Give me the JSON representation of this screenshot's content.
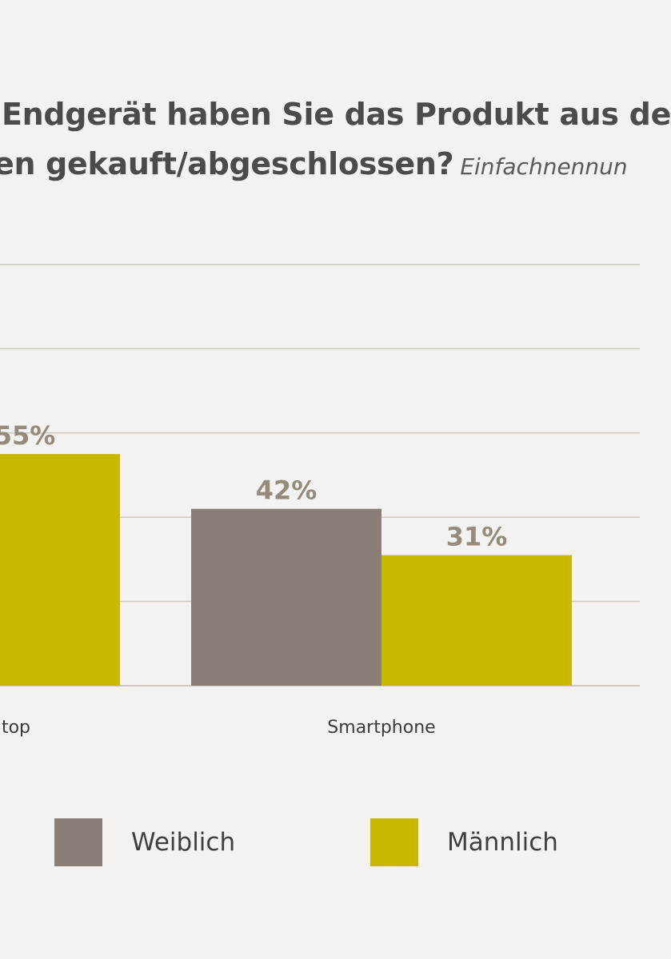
{
  "title": {
    "line1": "Endgerät haben Sie das Produkt aus de",
    "line2": "en gekauft/abgeschlossen?",
    "subtitle": "Einfachnennun"
  },
  "colors": {
    "background": "#f3f2f0",
    "weiblich": "#8a7f76",
    "maennlich": "#c8b800",
    "grid": "#cfc8bd",
    "value_label": "#958b7c",
    "axis_text": "#3a3a3a"
  },
  "chart_data": {
    "type": "bar",
    "categories": [
      "top",
      "Smartphone"
    ],
    "series": [
      {
        "name": "Weiblich",
        "values": [
          null,
          42
        ]
      },
      {
        "name": "Männlich",
        "values": [
          55,
          31
        ]
      }
    ],
    "value_labels": {
      "Weiblich": [
        "",
        "42%"
      ],
      "Männlich": [
        "55%",
        "31%"
      ]
    },
    "ylim": [
      0,
      100
    ],
    "grid": true,
    "legend_position": "bottom"
  },
  "legend": {
    "items": [
      {
        "label": "Weiblich",
        "color": "#8a7f76"
      },
      {
        "label": "Männlich",
        "color": "#c8b800"
      }
    ]
  }
}
